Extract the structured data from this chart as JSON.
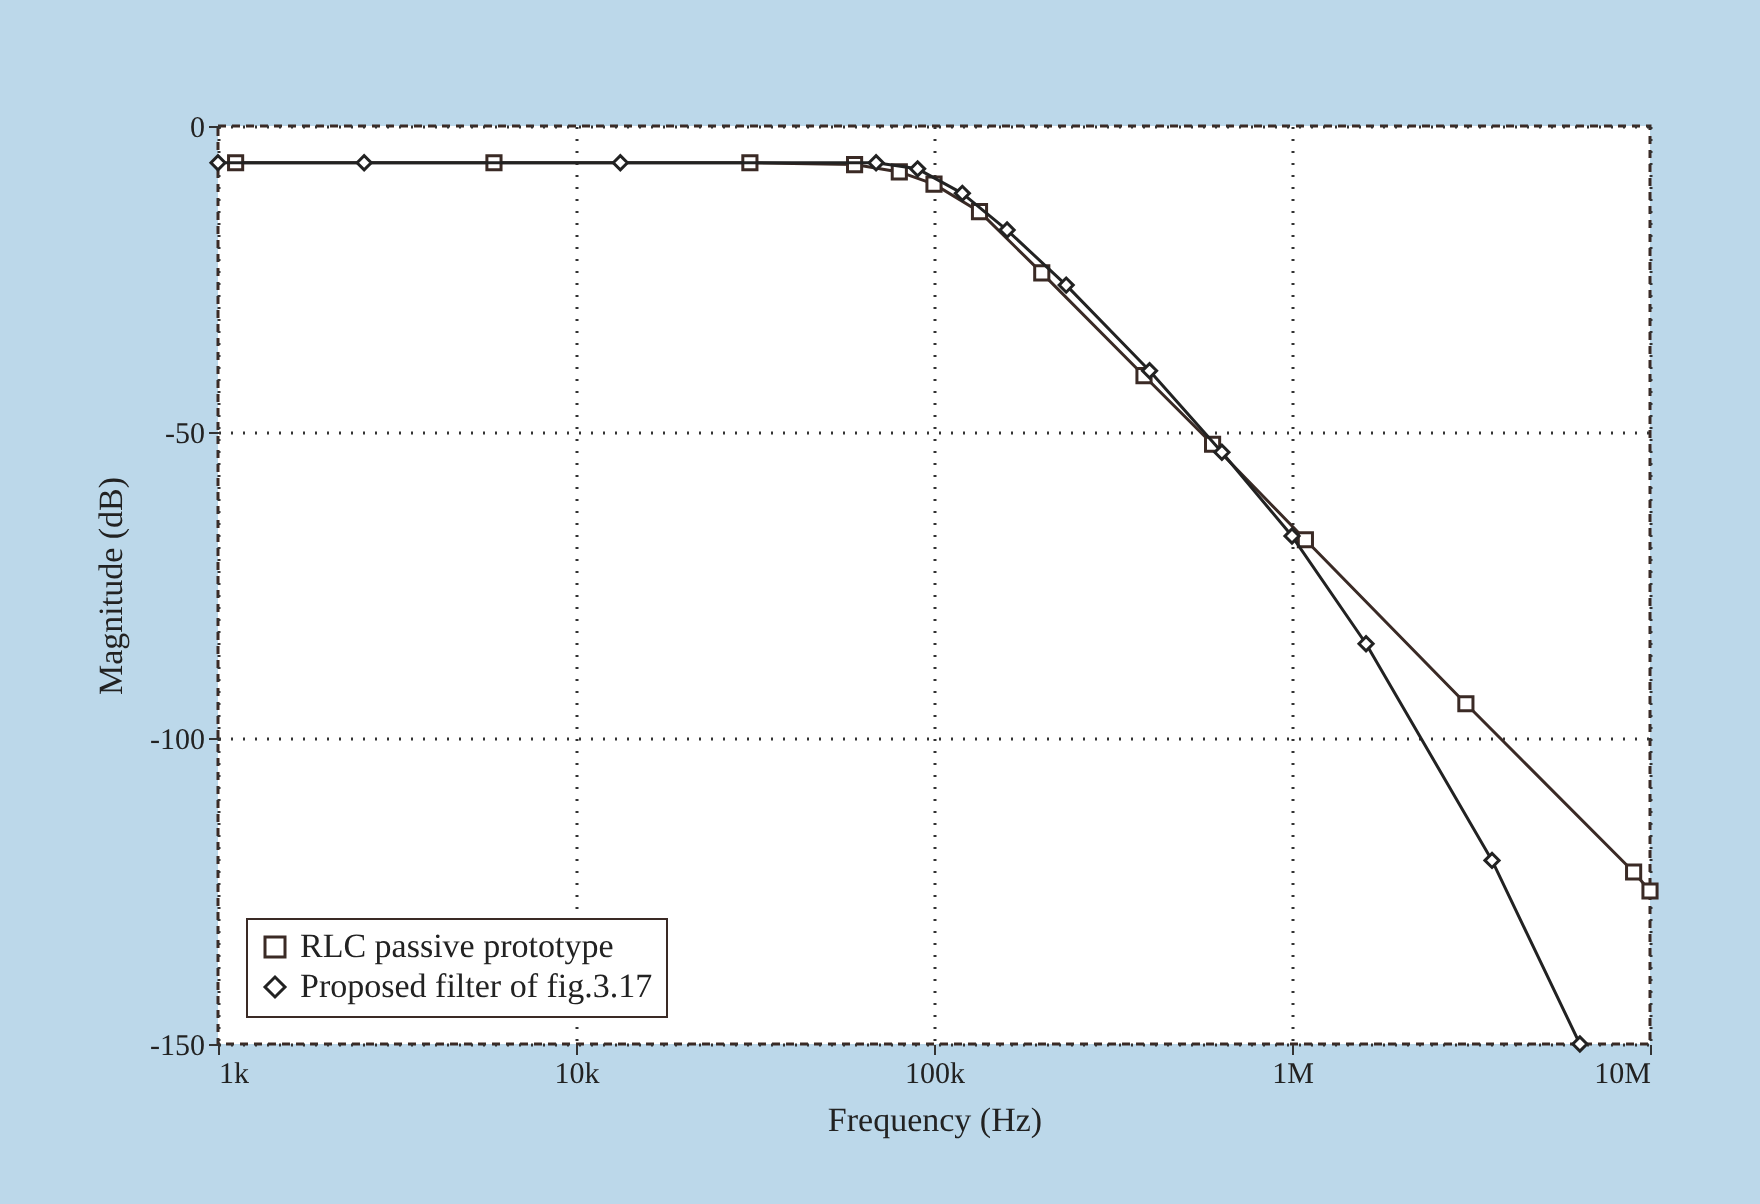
{
  "chart_data": {
    "type": "line",
    "xlabel": "Frequency (Hz)",
    "ylabel": "Magnitude (dB)",
    "log": "x",
    "xlim": [
      1000,
      10000000
    ],
    "xticks": [
      {
        "value": 1000,
        "label": "1k"
      },
      {
        "value": 10000,
        "label": "10k"
      },
      {
        "value": 100000,
        "label": "100k"
      },
      {
        "value": 1000000,
        "label": "1M"
      },
      {
        "value": 10000000,
        "label": "10M"
      }
    ],
    "ylim": [
      -150,
      0
    ],
    "yticks": [
      0,
      -50,
      -100,
      -150
    ],
    "grid": true,
    "legend": "bottom left",
    "line_style": "solid",
    "series": [
      {
        "name": "RLC passive prototype",
        "color": "#3a2a25",
        "marker": "square",
        "x": [
          1120,
          5900,
          30600,
          60000,
          80000,
          100000,
          134000,
          200000,
          386000,
          600000,
          1090000,
          3060000,
          9000000,
          10000000
        ],
        "values": [
          -6,
          -6,
          -6,
          -6.3,
          -7.5,
          -9.5,
          -14,
          -24,
          -40.8,
          -52,
          -67.6,
          -94.4,
          -121.9,
          -125
        ]
      },
      {
        "name": "Proposed filter of fig.3.17",
        "color": "#222222",
        "marker": "diamond",
        "x": [
          1000,
          2560,
          13300,
          68900,
          90000,
          120000,
          160000,
          234000,
          400000,
          637000,
          1000000,
          1610000,
          3620000,
          6370000
        ],
        "values": [
          -6,
          -6,
          -6,
          -6,
          -7,
          -11,
          -17,
          -26,
          -40,
          -53.3,
          -67,
          -84.6,
          -120,
          -150
        ]
      }
    ]
  }
}
